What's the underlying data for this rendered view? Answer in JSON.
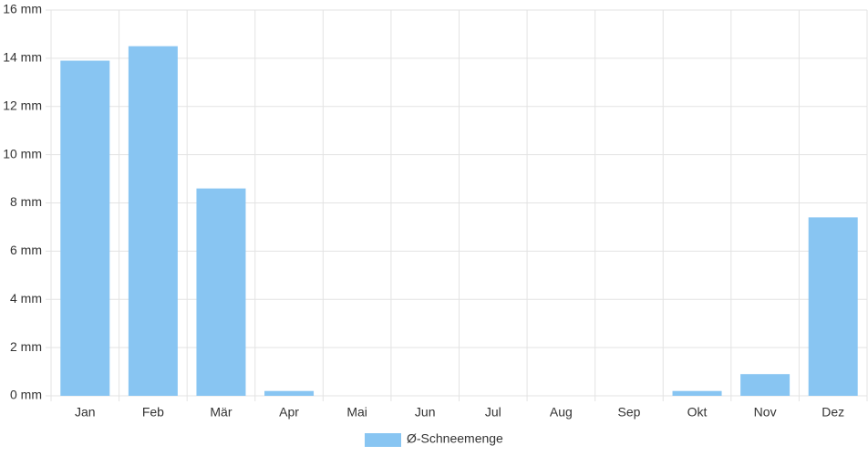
{
  "chart_data": {
    "type": "bar",
    "categories": [
      "Jan",
      "Feb",
      "Mär",
      "Apr",
      "Mai",
      "Jun",
      "Jul",
      "Aug",
      "Sep",
      "Okt",
      "Nov",
      "Dez"
    ],
    "series": [
      {
        "name": "Ø-Schneemenge",
        "color": "#88c5f2",
        "values": [
          13.9,
          14.5,
          8.6,
          0.2,
          0,
          0,
          0,
          0,
          0,
          0.2,
          0.9,
          7.4
        ]
      }
    ],
    "ylim": [
      0,
      16
    ],
    "yticks": [
      {
        "value": 0,
        "label": "0 mm"
      },
      {
        "value": 2,
        "label": "2 mm"
      },
      {
        "value": 4,
        "label": "4 mm"
      },
      {
        "value": 6,
        "label": "6 mm"
      },
      {
        "value": 8,
        "label": "8 mm"
      },
      {
        "value": 10,
        "label": "10 mm"
      },
      {
        "value": 12,
        "label": "12 mm"
      },
      {
        "value": 14,
        "label": "14 mm"
      },
      {
        "value": 16,
        "label": "16 mm"
      }
    ],
    "grid": true,
    "legend": "bottom"
  }
}
